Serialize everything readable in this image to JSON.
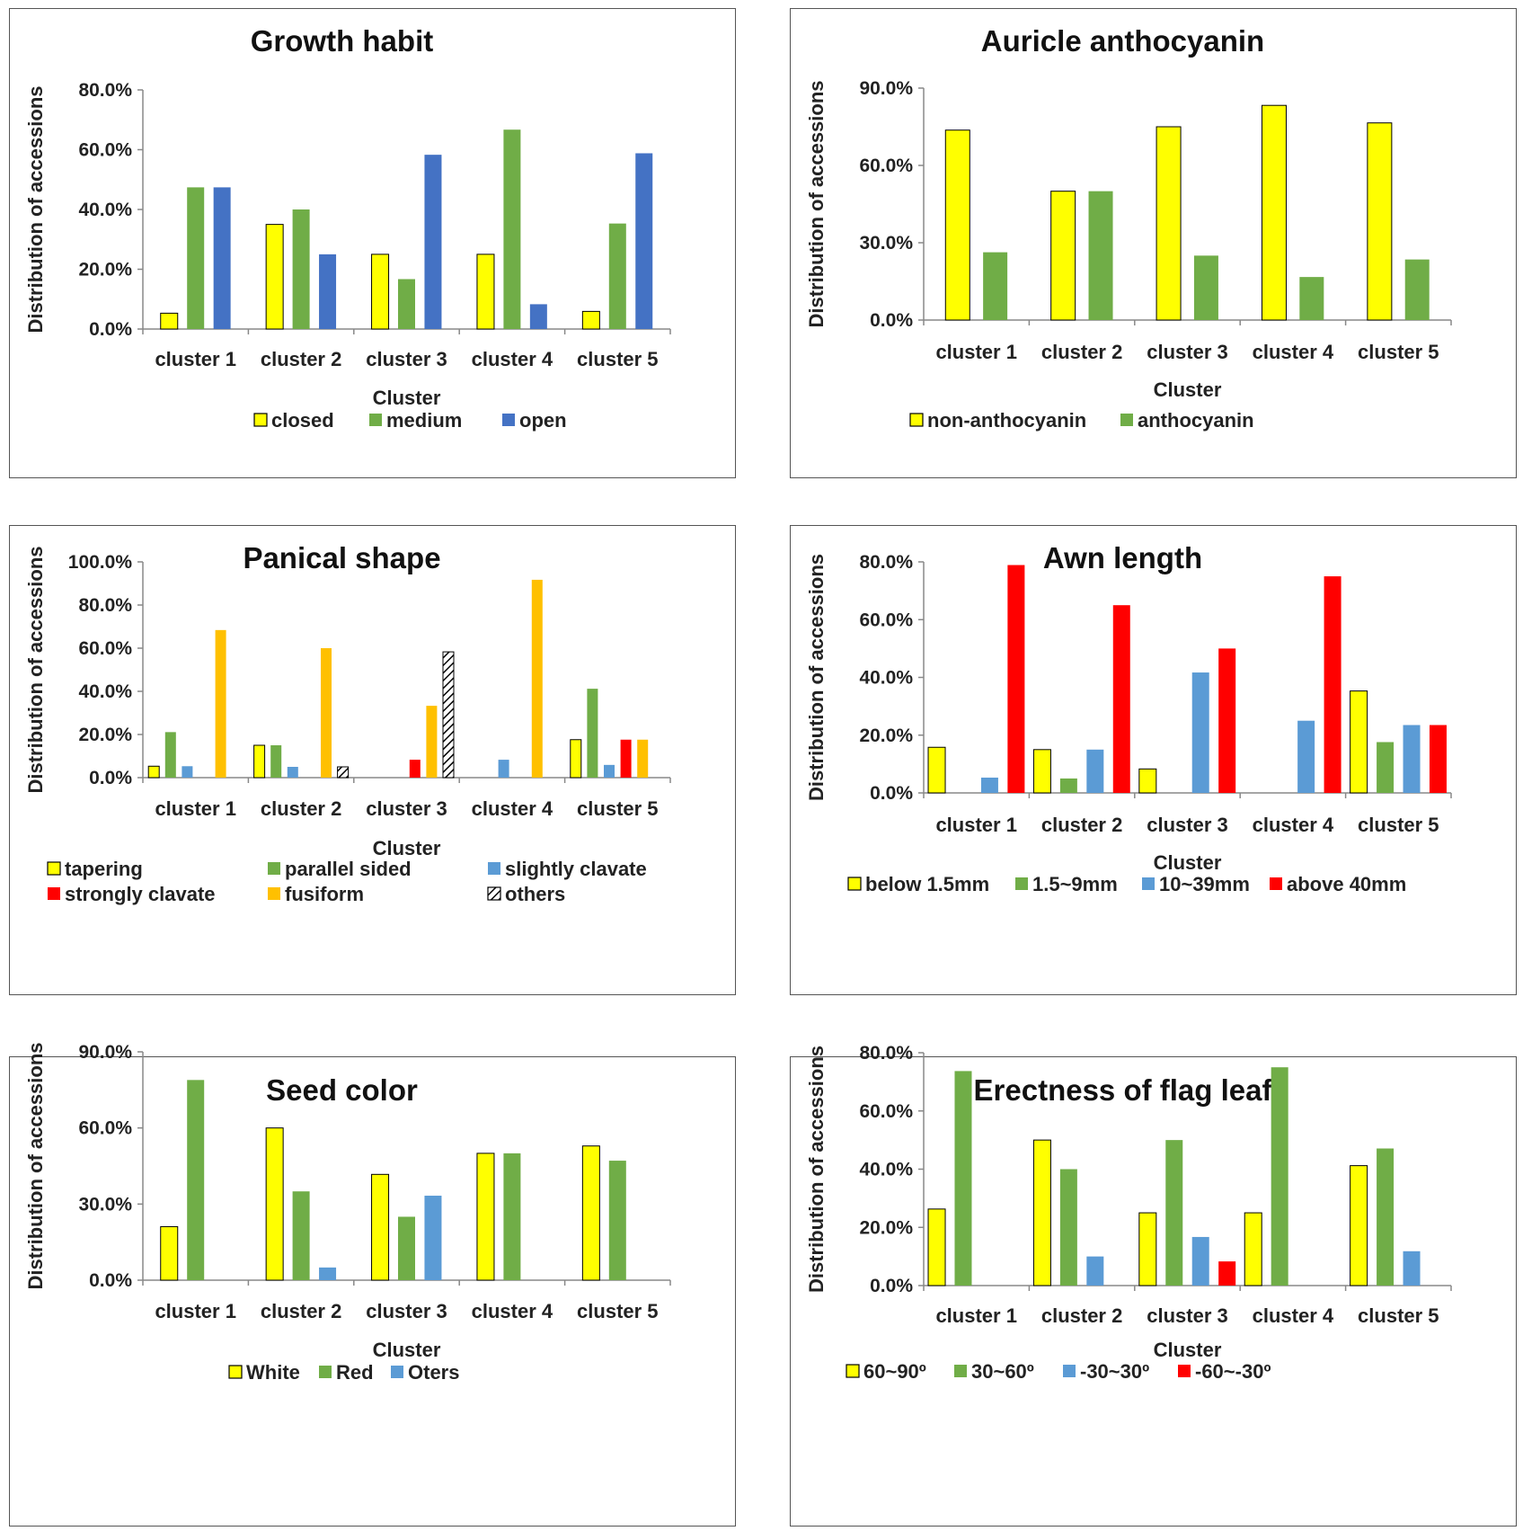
{
  "chart_data": [
    {
      "type": "bar",
      "title": "Growth habit",
      "xlabel": "Cluster",
      "ylabel": "Distribution  of accessions",
      "categories": [
        "cluster 1",
        "cluster 2",
        "cluster 3",
        "cluster 4",
        "cluster 5"
      ],
      "ylim": [
        0,
        80
      ],
      "yticks": [
        "0.0%",
        "20.0%",
        "40.0%",
        "60.0%",
        "80.0%"
      ],
      "legend_position": "bottom",
      "series": [
        {
          "name": "closed",
          "color": "#ffff00",
          "values": [
            5.3,
            35.0,
            25.0,
            25.0,
            5.9
          ]
        },
        {
          "name": "medium",
          "color": "#70ad47",
          "values": [
            47.4,
            40.0,
            16.7,
            66.7,
            35.3
          ]
        },
        {
          "name": "open",
          "color": "#4472c4",
          "values": [
            47.4,
            25.0,
            58.3,
            8.3,
            58.8
          ]
        }
      ]
    },
    {
      "type": "bar",
      "title": "Auricle anthocyanin",
      "xlabel": "Cluster",
      "ylabel": "Distribution  of accessions",
      "categories": [
        "cluster 1",
        "cluster 2",
        "cluster 3",
        "cluster 4",
        "cluster 5"
      ],
      "ylim": [
        0,
        90
      ],
      "yticks": [
        "0.0%",
        "30.0%",
        "60.0%",
        "90.0%"
      ],
      "legend_position": "bottom",
      "series": [
        {
          "name": "non-anthocyanin",
          "color": "#ffff00",
          "values": [
            73.7,
            50.0,
            75.0,
            83.3,
            76.5
          ]
        },
        {
          "name": "anthocyanin",
          "color": "#70ad47",
          "values": [
            26.3,
            50.0,
            25.0,
            16.7,
            23.5
          ]
        }
      ]
    },
    {
      "type": "bar",
      "title": "Panical shape",
      "xlabel": "Cluster",
      "ylabel": "Distribution  of accessions",
      "categories": [
        "cluster 1",
        "cluster 2",
        "cluster 3",
        "cluster 4",
        "cluster 5"
      ],
      "ylim": [
        0,
        100
      ],
      "yticks": [
        "0.0%",
        "20.0%",
        "40.0%",
        "60.0%",
        "80.0%",
        "100.0%"
      ],
      "legend_position": "bottom",
      "series": [
        {
          "name": "tapering",
          "color": "#ffff00",
          "values": [
            5.3,
            15.0,
            0,
            0,
            17.6
          ]
        },
        {
          "name": "parallel sided",
          "color": "#70ad47",
          "values": [
            21.1,
            15.0,
            0,
            0,
            41.2
          ]
        },
        {
          "name": "slightly clavate",
          "color": "#5b9bd5",
          "values": [
            5.3,
            5.0,
            0,
            8.3,
            5.9
          ]
        },
        {
          "name": "strongly clavate",
          "color": "#ff0000",
          "values": [
            0,
            0,
            8.3,
            0,
            17.6
          ]
        },
        {
          "name": "fusiform",
          "color": "#ffc000",
          "values": [
            68.4,
            60.0,
            33.3,
            91.7,
            17.6
          ]
        },
        {
          "name": "others",
          "color": "hatch",
          "values": [
            0,
            5.0,
            58.3,
            0,
            0
          ]
        }
      ]
    },
    {
      "type": "bar",
      "title": "Awn length",
      "xlabel": "Cluster",
      "ylabel": "Distribution  of accessions",
      "categories": [
        "cluster 1",
        "cluster 2",
        "cluster 3",
        "cluster 4",
        "cluster 5"
      ],
      "ylim": [
        0,
        80
      ],
      "yticks": [
        "0.0%",
        "20.0%",
        "40.0%",
        "60.0%",
        "80.0%"
      ],
      "legend_position": "bottom",
      "series": [
        {
          "name": "below 1.5mm",
          "color": "#ffff00",
          "values": [
            15.8,
            15.0,
            8.3,
            0,
            35.3
          ]
        },
        {
          "name": "1.5~9mm",
          "color": "#70ad47",
          "values": [
            0,
            5.0,
            0,
            0,
            17.6
          ]
        },
        {
          "name": "10~39mm",
          "color": "#5b9bd5",
          "values": [
            5.3,
            15.0,
            41.7,
            25.0,
            23.5
          ]
        },
        {
          "name": "above 40mm",
          "color": "#ff0000",
          "values": [
            78.9,
            65.0,
            50.0,
            75.0,
            23.5
          ]
        }
      ]
    },
    {
      "type": "bar",
      "title": "Seed color",
      "xlabel": "Cluster",
      "ylabel": "Distribution  of accessions",
      "categories": [
        "cluster 1",
        "cluster 2",
        "cluster 3",
        "cluster 4",
        "cluster 5"
      ],
      "ylim": [
        0,
        90
      ],
      "yticks": [
        "0.0%",
        "30.0%",
        "60.0%",
        "90.0%"
      ],
      "legend_position": "bottom",
      "series": [
        {
          "name": "White",
          "color": "#ffff00",
          "values": [
            21.1,
            60.0,
            41.7,
            50.0,
            52.9
          ]
        },
        {
          "name": "Red",
          "color": "#70ad47",
          "values": [
            78.9,
            35.0,
            25.0,
            50.0,
            47.1
          ]
        },
        {
          "name": "Oters",
          "color": "#5b9bd5",
          "values": [
            0,
            5.0,
            33.3,
            0,
            0
          ]
        }
      ]
    },
    {
      "type": "bar",
      "title": "Erectness of flag leaf",
      "xlabel": "Cluster",
      "ylabel": "Distribution  of accessions",
      "categories": [
        "cluster 1",
        "cluster 2",
        "cluster 3",
        "cluster 4",
        "cluster 5"
      ],
      "ylim": [
        0,
        80
      ],
      "yticks": [
        "0.0%",
        "20.0%",
        "40.0%",
        "60.0%",
        "80.0%"
      ],
      "legend_position": "bottom",
      "series": [
        {
          "name": "60~90º",
          "color": "#ffff00",
          "values": [
            26.3,
            50.0,
            25.0,
            25.0,
            41.2
          ]
        },
        {
          "name": "30~60º",
          "color": "#70ad47",
          "values": [
            73.7,
            40.0,
            50.0,
            75.0,
            47.1
          ]
        },
        {
          "name": "-30~30º",
          "color": "#5b9bd5",
          "values": [
            0,
            10.0,
            16.7,
            0,
            11.8
          ]
        },
        {
          "name": "-60~-30º",
          "color": "#ff0000",
          "values": [
            0,
            0,
            8.3,
            0,
            0
          ]
        }
      ]
    }
  ]
}
